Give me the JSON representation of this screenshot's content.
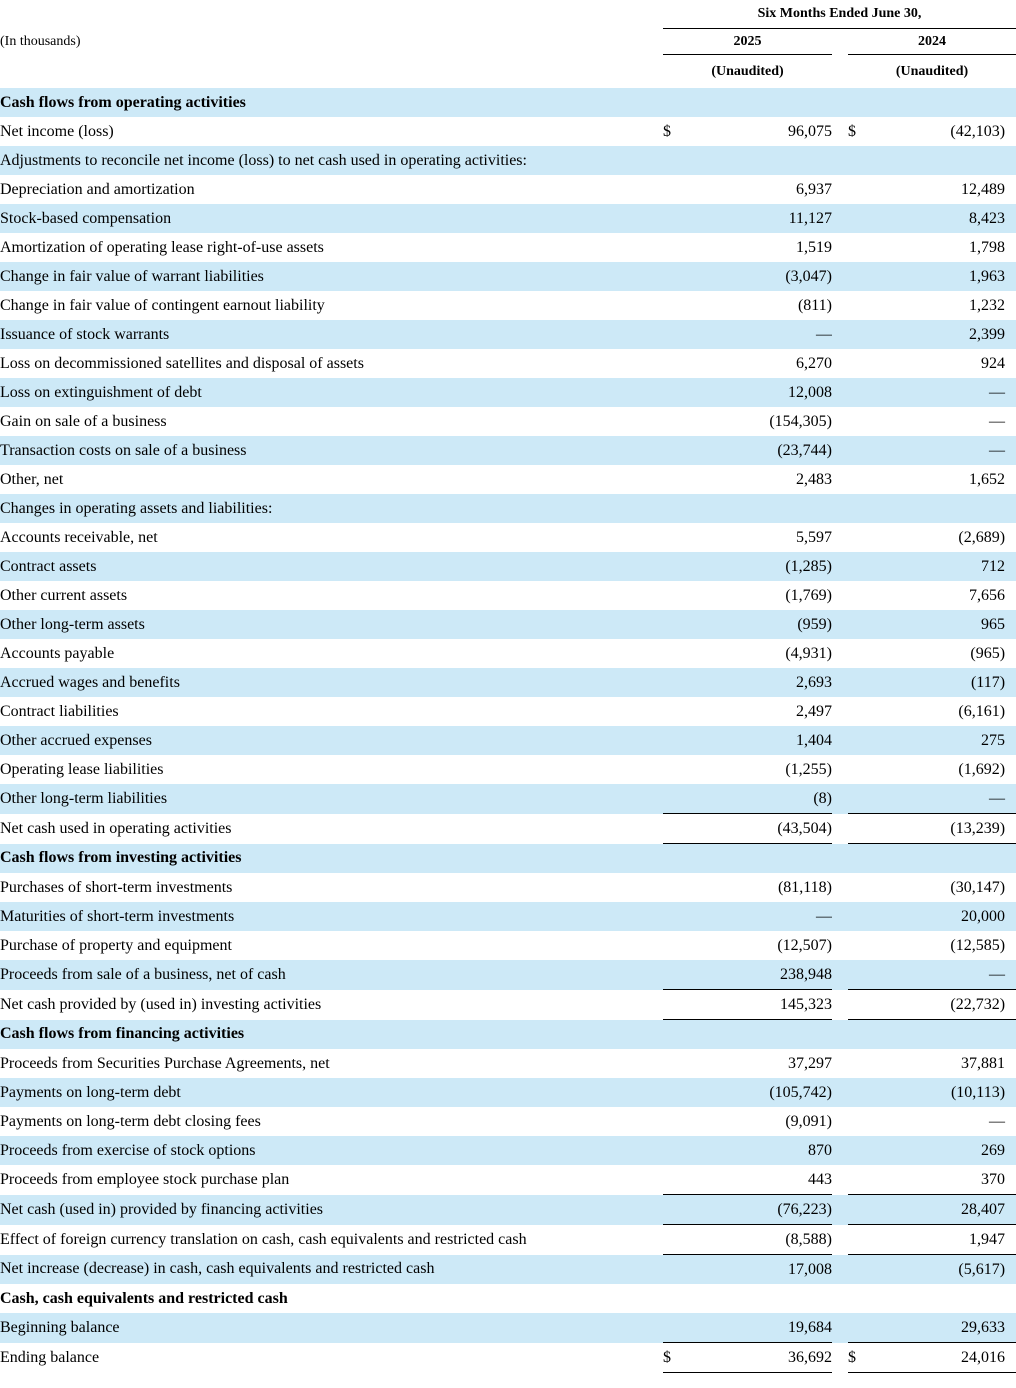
{
  "document": {
    "unit_note": "(In thousands)",
    "period_header": "Six Months Ended June 30,",
    "columns": [
      {
        "year": "2025",
        "note": "(Unaudited)"
      },
      {
        "year": "2024",
        "note": "(Unaudited)"
      }
    ],
    "colors": {
      "row_highlight": "#cde9f7",
      "rule": "#000000",
      "text": "#000000"
    },
    "rows": [
      {
        "label": "Cash flows from operating activities",
        "indent": 0,
        "bold": true,
        "shade": true
      },
      {
        "label": "Net income (loss)",
        "indent": 1,
        "shade": false,
        "d1": "$",
        "v1": "96,075",
        "d2": "$",
        "v2": "(42,103)"
      },
      {
        "label": "Adjustments to reconcile net income (loss) to net cash used in operating activities:",
        "indent": 1,
        "shade": true
      },
      {
        "label": "Depreciation and amortization",
        "indent": 1,
        "shade": false,
        "v1": "6,937",
        "v2": "12,489"
      },
      {
        "label": "Stock-based compensation",
        "indent": 1,
        "shade": true,
        "v1": "11,127",
        "v2": "8,423"
      },
      {
        "label": "Amortization of operating lease right-of-use assets",
        "indent": 1,
        "shade": false,
        "v1": "1,519",
        "v2": "1,798"
      },
      {
        "label": "Change in fair value of warrant liabilities",
        "indent": 1,
        "shade": true,
        "v1": "(3,047)",
        "v2": "1,963"
      },
      {
        "label": "Change in fair value of contingent earnout liability",
        "indent": 1,
        "shade": false,
        "v1": "(811)",
        "v2": "1,232"
      },
      {
        "label": "Issuance of stock warrants",
        "indent": 1,
        "shade": true,
        "v1": "—",
        "v2": "2,399"
      },
      {
        "label": "Loss on decommissioned satellites and disposal of assets",
        "indent": 1,
        "shade": false,
        "v1": "6,270",
        "v2": "924"
      },
      {
        "label": "Loss on extinguishment of debt",
        "indent": 1,
        "shade": true,
        "v1": "12,008",
        "v2": "—"
      },
      {
        "label": "Gain on sale of a business",
        "indent": 1,
        "shade": false,
        "v1": "(154,305)",
        "v2": "—"
      },
      {
        "label": "Transaction costs on sale of a business",
        "indent": 1,
        "shade": true,
        "v1": "(23,744)",
        "v2": "—"
      },
      {
        "label": "Other, net",
        "indent": 1,
        "shade": false,
        "v1": "2,483",
        "v2": "1,652"
      },
      {
        "label": "Changes in operating assets and liabilities:",
        "indent": 1,
        "shade": true
      },
      {
        "label": "Accounts receivable, net",
        "indent": 2,
        "shade": false,
        "v1": "5,597",
        "v2": "(2,689)"
      },
      {
        "label": "Contract assets",
        "indent": 2,
        "shade": true,
        "v1": "(1,285)",
        "v2": "712"
      },
      {
        "label": "Other current assets",
        "indent": 2,
        "shade": false,
        "v1": "(1,769)",
        "v2": "7,656"
      },
      {
        "label": "Other long-term assets",
        "indent": 2,
        "shade": true,
        "v1": "(959)",
        "v2": "965"
      },
      {
        "label": "Accounts payable",
        "indent": 2,
        "shade": false,
        "v1": "(4,931)",
        "v2": "(965)"
      },
      {
        "label": "Accrued wages and benefits",
        "indent": 2,
        "shade": true,
        "v1": "2,693",
        "v2": "(117)"
      },
      {
        "label": "Contract liabilities",
        "indent": 2,
        "shade": false,
        "v1": "2,497",
        "v2": "(6,161)"
      },
      {
        "label": "Other accrued expenses",
        "indent": 2,
        "shade": true,
        "v1": "1,404",
        "v2": "275"
      },
      {
        "label": "Operating lease liabilities",
        "indent": 2,
        "shade": false,
        "v1": "(1,255)",
        "v2": "(1,692)"
      },
      {
        "label": "Other long-term liabilities",
        "indent": 2,
        "shade": true,
        "v1": "(8)",
        "v2": "—",
        "rule": true
      },
      {
        "label": "Net cash used in operating activities",
        "indent": 3,
        "shade": false,
        "v1": "(43,504)",
        "v2": "(13,239)",
        "rule": true
      },
      {
        "label": "Cash flows from investing activities",
        "indent": 0,
        "bold": true,
        "shade": true
      },
      {
        "label": "Purchases of short-term investments",
        "indent": 1,
        "shade": false,
        "v1": "(81,118)",
        "v2": "(30,147)"
      },
      {
        "label": "Maturities of short-term investments",
        "indent": 1,
        "shade": true,
        "v1": "—",
        "v2": "20,000"
      },
      {
        "label": "Purchase of property and equipment",
        "indent": 1,
        "shade": false,
        "v1": "(12,507)",
        "v2": "(12,585)"
      },
      {
        "label": "Proceeds from sale of a business, net of cash",
        "indent": 1,
        "shade": true,
        "v1": "238,948",
        "v2": "—",
        "rule": true
      },
      {
        "label": "Net cash provided by (used in) investing activities",
        "indent": 3,
        "shade": false,
        "v1": "145,323",
        "v2": "(22,732)",
        "rule": true
      },
      {
        "label": "Cash flows from financing activities",
        "indent": 0,
        "bold": true,
        "shade": true
      },
      {
        "label": "Proceeds from Securities Purchase Agreements, net",
        "indent": 1,
        "shade": false,
        "v1": "37,297",
        "v2": "37,881"
      },
      {
        "label": "Payments on long-term debt",
        "indent": 1,
        "shade": true,
        "v1": "(105,742)",
        "v2": "(10,113)"
      },
      {
        "label": "Payments on long-term debt closing fees",
        "indent": 1,
        "shade": false,
        "v1": "(9,091)",
        "v2": "—"
      },
      {
        "label": "Proceeds from exercise of stock options",
        "indent": 1,
        "shade": true,
        "v1": "870",
        "v2": "269"
      },
      {
        "label": "Proceeds from employee stock purchase plan",
        "indent": 1,
        "shade": false,
        "v1": "443",
        "v2": "370",
        "rule": true
      },
      {
        "label": "Net cash (used in) provided by financing activities",
        "indent": 3,
        "shade": true,
        "v1": "(76,223)",
        "v2": "28,407",
        "rule": true
      },
      {
        "label": "Effect of foreign currency translation on cash, cash equivalents and restricted cash",
        "indent": 0,
        "shade": false,
        "v1": "(8,588)",
        "v2": "1,947",
        "rule": true
      },
      {
        "label": "Net increase (decrease) in cash, cash equivalents and restricted cash",
        "indent": 3,
        "shade": true,
        "v1": "17,008",
        "v2": "(5,617)"
      },
      {
        "label": "Cash, cash equivalents and restricted cash",
        "indent": 0,
        "bold": true,
        "shade": false
      },
      {
        "label": "Beginning balance",
        "indent": 1,
        "shade": true,
        "v1": "19,684",
        "v2": "29,633",
        "rule": true
      },
      {
        "label": "Ending balance",
        "indent": 1,
        "shade": false,
        "d1": "$",
        "v1": "36,692",
        "d2": "$",
        "v2": "24,016",
        "rule": true
      }
    ]
  }
}
